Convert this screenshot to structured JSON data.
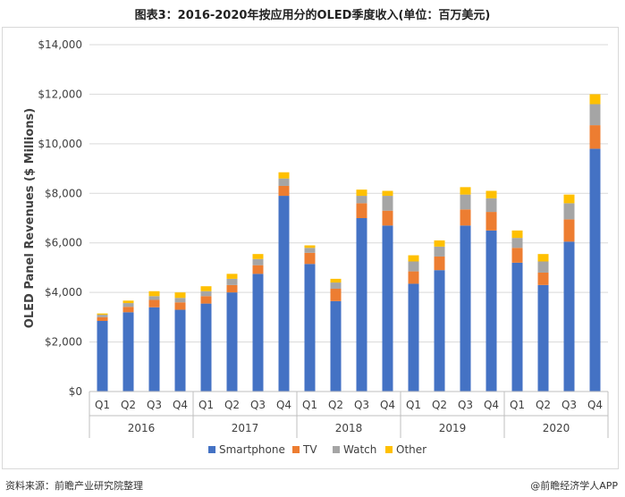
{
  "title": "图表3：2016-2020年按应用分的OLED季度收入(单位：百万美元)",
  "footer": {
    "source": "资料来源：前瞻产业研究院整理",
    "brand": "@前瞻经济学人APP"
  },
  "colors": {
    "Smartphone": "#4472c4",
    "TV": "#ed7d31",
    "Watch": "#a5a5a5",
    "Other": "#ffc000"
  },
  "chart_data": {
    "type": "bar",
    "stacked": true,
    "ylabel": "OLED Panel Revenues ($ Millions)",
    "xlabel": "",
    "ylim": [
      0,
      14000
    ],
    "yticks": [
      "$0",
      "$2,000",
      "$4,000",
      "$6,000",
      "$8,000",
      "$10,000",
      "$12,000",
      "$14,000"
    ],
    "grid": true,
    "legend": "bottom",
    "groups": [
      "2016",
      "2017",
      "2018",
      "2019",
      "2020"
    ],
    "categories": [
      "Q1",
      "Q2",
      "Q3",
      "Q4",
      "Q1",
      "Q2",
      "Q3",
      "Q4",
      "Q1",
      "Q2",
      "Q3",
      "Q4",
      "Q1",
      "Q2",
      "Q3",
      "Q4",
      "Q1",
      "Q2",
      "Q3",
      "Q4"
    ],
    "series": [
      {
        "name": "Smartphone",
        "values": [
          2850,
          3200,
          3400,
          3300,
          3550,
          4000,
          4750,
          7900,
          5150,
          3650,
          7000,
          6700,
          4350,
          4900,
          6700,
          6500,
          5200,
          4300,
          6050,
          9800
        ]
      },
      {
        "name": "TV",
        "values": [
          150,
          220,
          300,
          300,
          300,
          300,
          350,
          400,
          450,
          500,
          600,
          600,
          500,
          550,
          650,
          750,
          600,
          500,
          900,
          950
        ]
      },
      {
        "name": "Watch",
        "values": [
          100,
          150,
          150,
          180,
          200,
          250,
          250,
          300,
          200,
          250,
          300,
          600,
          400,
          400,
          600,
          550,
          400,
          450,
          650,
          850
        ]
      },
      {
        "name": "Other",
        "values": [
          50,
          100,
          200,
          220,
          200,
          200,
          200,
          250,
          100,
          150,
          250,
          200,
          250,
          250,
          300,
          300,
          300,
          300,
          350,
          400
        ]
      }
    ]
  }
}
